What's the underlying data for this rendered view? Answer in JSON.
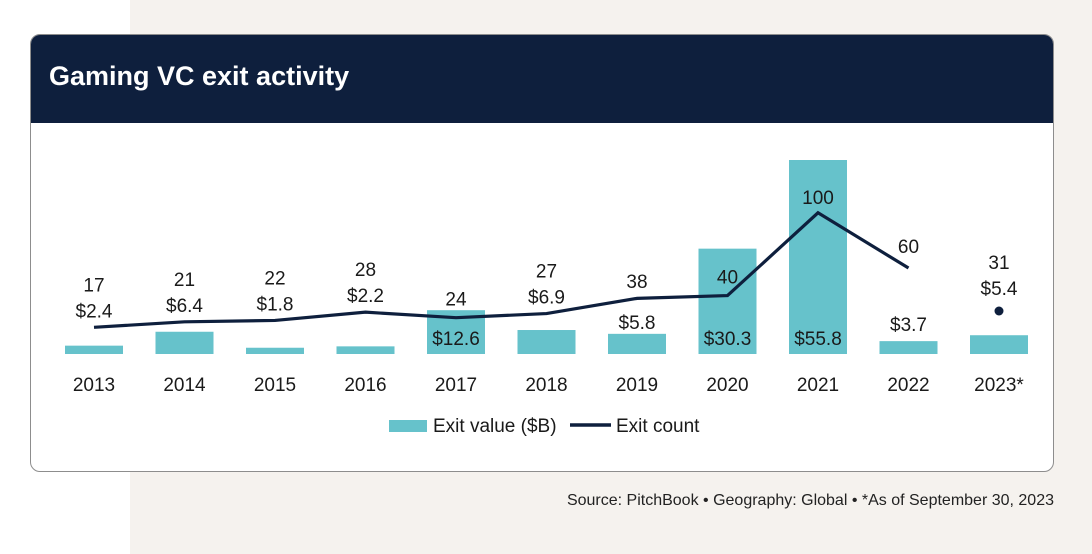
{
  "header": {
    "title": "Gaming VC exit activity"
  },
  "source": "Source: PitchBook • Geography: Global • *As of September 30, 2023",
  "colors": {
    "bar": "#66c2cb",
    "line": "#0e1f3d",
    "header_bg": "#0e1f3d",
    "page_bg": "#f5f2ee"
  },
  "chart_data": {
    "type": "bar",
    "title": "Gaming VC exit activity",
    "categories": [
      "2013",
      "2014",
      "2015",
      "2016",
      "2017",
      "2018",
      "2019",
      "2020",
      "2021",
      "2022",
      "2023*"
    ],
    "series": [
      {
        "name": "Exit value ($B)",
        "type": "bar",
        "values": [
          2.4,
          6.4,
          1.8,
          2.2,
          12.6,
          6.9,
          5.8,
          30.3,
          55.8,
          3.7,
          5.4
        ],
        "labels": [
          "$2.4",
          "$6.4",
          "$1.8",
          "$2.2",
          "$12.6",
          "$6.9",
          "$5.8",
          "$30.3",
          "$55.8",
          "$3.7",
          "$5.4"
        ]
      },
      {
        "name": "Exit count",
        "type": "line",
        "values": [
          17,
          21,
          22,
          28,
          24,
          27,
          38,
          40,
          100,
          60,
          31
        ],
        "labels": [
          "17",
          "21",
          "22",
          "28",
          "24",
          "27",
          "38",
          "40",
          "100",
          "60",
          "31"
        ]
      }
    ],
    "legend": {
      "position": "bottom"
    },
    "grid": false,
    "xlabel": "",
    "ylabel": ""
  }
}
